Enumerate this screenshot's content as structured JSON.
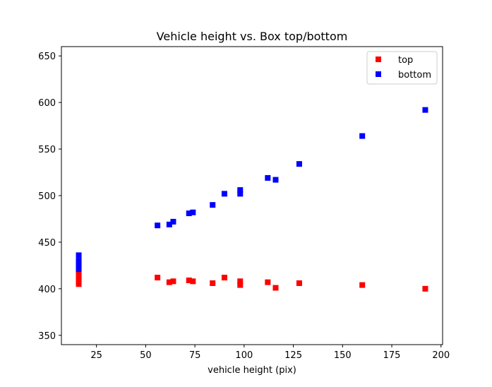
{
  "chart_data": {
    "type": "scatter",
    "title": "Vehicle height vs. Box top/bottom",
    "xlabel": "vehicle height (pix)",
    "ylabel": "",
    "xlim": [
      7.2,
      200.8
    ],
    "ylim": [
      340,
      660
    ],
    "xticks": [
      25,
      50,
      75,
      100,
      125,
      150,
      175,
      200
    ],
    "yticks": [
      350,
      400,
      450,
      500,
      550,
      600,
      650
    ],
    "grid": false,
    "legend_position": "top-right",
    "series": [
      {
        "name": "top",
        "color": "#ff0000",
        "marker": "square",
        "points": [
          [
            16,
            405
          ],
          [
            16,
            408
          ],
          [
            16,
            411
          ],
          [
            16,
            414
          ],
          [
            16,
            417
          ],
          [
            56,
            412
          ],
          [
            62,
            407
          ],
          [
            64,
            408
          ],
          [
            72,
            409
          ],
          [
            74,
            408
          ],
          [
            84,
            406
          ],
          [
            90,
            412
          ],
          [
            98,
            404
          ],
          [
            98,
            408
          ],
          [
            112,
            407
          ],
          [
            116,
            401
          ],
          [
            128,
            406
          ],
          [
            160,
            404
          ],
          [
            192,
            400
          ]
        ]
      },
      {
        "name": "bottom",
        "color": "#0000ff",
        "marker": "square",
        "points": [
          [
            16,
            421
          ],
          [
            16,
            424
          ],
          [
            16,
            427
          ],
          [
            16,
            430
          ],
          [
            16,
            436
          ],
          [
            56,
            468
          ],
          [
            62,
            469
          ],
          [
            64,
            472
          ],
          [
            72,
            481
          ],
          [
            74,
            482
          ],
          [
            84,
            490
          ],
          [
            90,
            502
          ],
          [
            98,
            502
          ],
          [
            98,
            506
          ],
          [
            112,
            519
          ],
          [
            116,
            517
          ],
          [
            128,
            534
          ],
          [
            160,
            564
          ],
          [
            192,
            592
          ]
        ]
      }
    ]
  }
}
